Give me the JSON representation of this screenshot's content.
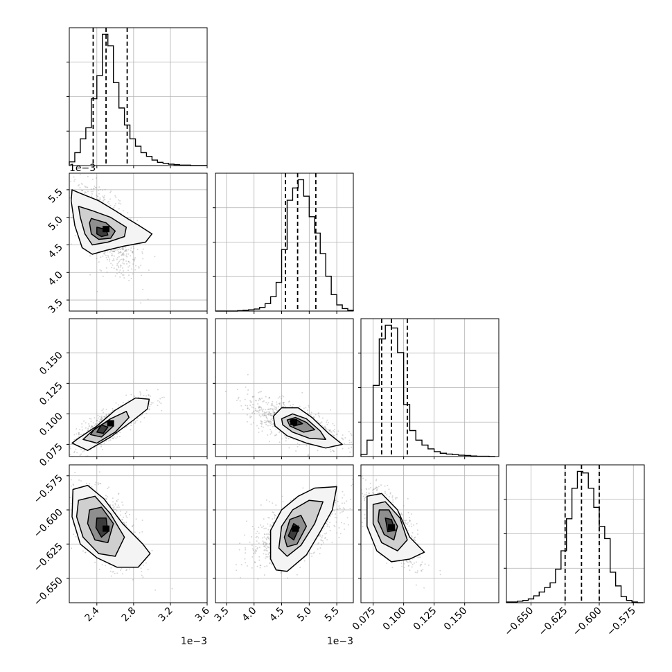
{
  "chart_data": {
    "type": "corner",
    "grid": true,
    "quantile_lines": "dashed",
    "parameters": [
      {
        "id": "p0",
        "range": [
          2.1,
          3.6
        ],
        "ticks": [
          2.4,
          2.8,
          3.2,
          3.6
        ],
        "tick_labels": [
          "2.4",
          "2.8",
          "3.2",
          "3.6"
        ],
        "offset_label": "1e−3"
      },
      {
        "id": "p1",
        "range": [
          3.3,
          5.8
        ],
        "ticks": [
          3.5,
          4.0,
          4.5,
          5.0,
          5.5
        ],
        "tick_labels": [
          "3.5",
          "4.0",
          "4.5",
          "5.0",
          "5.5"
        ],
        "offset_label": "1e−3"
      },
      {
        "id": "p2",
        "range": [
          0.065,
          0.178
        ],
        "ticks": [
          0.075,
          0.1,
          0.125,
          0.15
        ],
        "tick_labels": [
          "0.075",
          "0.100",
          "0.125",
          "0.150"
        ],
        "offset_label": ""
      },
      {
        "id": "p3",
        "range": [
          -0.668,
          -0.567
        ],
        "ticks": [
          -0.65,
          -0.625,
          -0.6,
          -0.575
        ],
        "tick_labels": [
          "−0.650",
          "−0.625",
          "−0.600",
          "−0.575"
        ],
        "offset_label": ""
      }
    ],
    "row_offset_label": "1e−3",
    "histograms": [
      {
        "param": 0,
        "quantiles": [
          2.36,
          2.5,
          2.73
        ],
        "bin_edges": [
          2.1,
          2.16,
          2.22,
          2.28,
          2.34,
          2.4,
          2.46,
          2.52,
          2.58,
          2.64,
          2.7,
          2.76,
          2.82,
          2.88,
          2.94,
          3.0,
          3.06,
          3.12,
          3.18,
          3.24,
          3.3,
          3.36,
          3.42,
          3.48,
          3.54,
          3.6
        ],
        "counts": [
          8,
          28,
          58,
          82,
          145,
          195,
          285,
          260,
          180,
          125,
          88,
          58,
          42,
          28,
          20,
          12,
          7,
          5,
          3,
          2,
          1,
          1,
          0,
          0,
          0
        ]
      },
      {
        "param": 1,
        "quantiles": [
          4.57,
          4.79,
          5.12
        ],
        "bin_edges": [
          3.3,
          3.4,
          3.5,
          3.6,
          3.7,
          3.8,
          3.9,
          4.0,
          4.1,
          4.2,
          4.3,
          4.4,
          4.5,
          4.6,
          4.7,
          4.8,
          4.9,
          5.0,
          5.1,
          5.2,
          5.3,
          5.4,
          5.5,
          5.6,
          5.7,
          5.8
        ],
        "counts": [
          0,
          0,
          0,
          0,
          1,
          2,
          3,
          5,
          9,
          18,
          35,
          70,
          150,
          270,
          300,
          320,
          280,
          230,
          190,
          140,
          85,
          40,
          15,
          6,
          2
        ]
      },
      {
        "param": 2,
        "quantiles": [
          0.082,
          0.09,
          0.103
        ],
        "bin_edges": [
          0.065,
          0.07,
          0.075,
          0.08,
          0.085,
          0.09,
          0.095,
          0.1,
          0.105,
          0.11,
          0.115,
          0.12,
          0.125,
          0.13,
          0.135,
          0.14,
          0.145,
          0.15,
          0.155,
          0.16,
          0.165,
          0.17,
          0.175
        ],
        "counts": [
          8,
          60,
          260,
          430,
          480,
          470,
          380,
          190,
          95,
          60,
          42,
          28,
          18,
          12,
          9,
          7,
          5,
          4,
          2,
          1,
          1,
          0
        ]
      },
      {
        "param": 3,
        "quantiles": [
          -0.625,
          -0.613,
          -0.6
        ],
        "bin_edges": [
          -0.668,
          -0.664,
          -0.66,
          -0.656,
          -0.652,
          -0.648,
          -0.644,
          -0.64,
          -0.636,
          -0.632,
          -0.628,
          -0.624,
          -0.62,
          -0.616,
          -0.612,
          -0.608,
          -0.604,
          -0.6,
          -0.596,
          -0.592,
          -0.588,
          -0.584,
          -0.58,
          -0.576,
          -0.572,
          -0.568
        ],
        "counts": [
          1,
          1,
          2,
          3,
          5,
          9,
          14,
          20,
          26,
          44,
          68,
          110,
          150,
          172,
          170,
          150,
          125,
          100,
          84,
          40,
          22,
          8,
          3,
          1,
          0
        ]
      }
    ],
    "joint": [
      {
        "x": 0,
        "y": 1,
        "mean": [
          2.5,
          4.78
        ],
        "sd": [
          0.12,
          0.28
        ],
        "corr": -0.6,
        "contours": [
          [
            [
              2.13,
              5.5
            ],
            [
              2.2,
              5.45
            ],
            [
              2.42,
              5.3
            ],
            [
              2.6,
              5.12
            ],
            [
              2.75,
              4.96
            ],
            [
              2.86,
              4.85
            ],
            [
              3.0,
              4.7
            ],
            [
              2.93,
              4.55
            ],
            [
              2.7,
              4.48
            ],
            [
              2.5,
              4.4
            ],
            [
              2.35,
              4.33
            ],
            [
              2.24,
              4.45
            ],
            [
              2.16,
              4.85
            ],
            [
              2.12,
              5.3
            ]
          ],
          [
            [
              2.2,
              5.2
            ],
            [
              2.35,
              5.12
            ],
            [
              2.55,
              5.0
            ],
            [
              2.72,
              4.82
            ],
            [
              2.7,
              4.65
            ],
            [
              2.52,
              4.55
            ],
            [
              2.35,
              4.5
            ],
            [
              2.27,
              4.7
            ],
            [
              2.22,
              5.0
            ]
          ],
          [
            [
              2.34,
              4.98
            ],
            [
              2.5,
              4.9
            ],
            [
              2.6,
              4.75
            ],
            [
              2.55,
              4.62
            ],
            [
              2.42,
              4.6
            ],
            [
              2.34,
              4.7
            ],
            [
              2.32,
              4.9
            ]
          ],
          [
            [
              2.4,
              4.82
            ],
            [
              2.5,
              4.78
            ],
            [
              2.52,
              4.68
            ],
            [
              2.45,
              4.65
            ],
            [
              2.4,
              4.7
            ]
          ]
        ]
      },
      {
        "x": 0,
        "y": 2,
        "mean": [
          2.55,
          0.092
        ],
        "sd": [
          0.14,
          0.007
        ],
        "corr": 0.82,
        "contours": [
          [
            [
              2.13,
              0.076
            ],
            [
              2.3,
              0.07
            ],
            [
              2.55,
              0.081
            ],
            [
              2.8,
              0.095
            ],
            [
              2.95,
              0.104
            ],
            [
              2.97,
              0.112
            ],
            [
              2.82,
              0.113
            ],
            [
              2.6,
              0.103
            ],
            [
              2.4,
              0.09
            ],
            [
              2.2,
              0.08
            ]
          ],
          [
            [
              2.25,
              0.079
            ],
            [
              2.4,
              0.076
            ],
            [
              2.6,
              0.085
            ],
            [
              2.75,
              0.097
            ],
            [
              2.72,
              0.102
            ],
            [
              2.55,
              0.096
            ],
            [
              2.35,
              0.086
            ]
          ],
          [
            [
              2.33,
              0.083
            ],
            [
              2.45,
              0.081
            ],
            [
              2.58,
              0.09
            ],
            [
              2.52,
              0.094
            ],
            [
              2.38,
              0.088
            ]
          ],
          [
            [
              2.4,
              0.085
            ],
            [
              2.47,
              0.084
            ],
            [
              2.52,
              0.089
            ],
            [
              2.45,
              0.091
            ]
          ]
        ]
      },
      {
        "x": 1,
        "y": 2,
        "mean": [
          4.72,
          0.093
        ],
        "sd": [
          0.3,
          0.007
        ],
        "corr": -0.65,
        "contours": [
          [
            [
              4.35,
              0.098
            ],
            [
              4.5,
              0.105
            ],
            [
              4.8,
              0.105
            ],
            [
              5.05,
              0.097
            ],
            [
              5.35,
              0.084
            ],
            [
              5.6,
              0.075
            ],
            [
              5.3,
              0.072
            ],
            [
              4.95,
              0.076
            ],
            [
              4.6,
              0.082
            ],
            [
              4.38,
              0.09
            ]
          ],
          [
            [
              4.5,
              0.096
            ],
            [
              4.7,
              0.1
            ],
            [
              4.95,
              0.096
            ],
            [
              5.2,
              0.086
            ],
            [
              5.3,
              0.079
            ],
            [
              5.0,
              0.08
            ],
            [
              4.7,
              0.085
            ],
            [
              4.52,
              0.091
            ]
          ],
          [
            [
              4.6,
              0.095
            ],
            [
              4.75,
              0.097
            ],
            [
              4.95,
              0.093
            ],
            [
              5.1,
              0.087
            ],
            [
              4.9,
              0.085
            ],
            [
              4.65,
              0.09
            ]
          ],
          [
            [
              4.65,
              0.094
            ],
            [
              4.78,
              0.095
            ],
            [
              4.88,
              0.092
            ],
            [
              4.72,
              0.09
            ]
          ]
        ]
      },
      {
        "x": 0,
        "y": 3,
        "mean": [
          2.5,
          -0.614
        ],
        "sd": [
          0.12,
          0.01
        ],
        "corr": -0.55,
        "contours": [
          [
            [
              2.14,
              -0.585
            ],
            [
              2.3,
              -0.582
            ],
            [
              2.48,
              -0.592
            ],
            [
              2.68,
              -0.61
            ],
            [
              2.9,
              -0.625
            ],
            [
              2.98,
              -0.632
            ],
            [
              2.85,
              -0.642
            ],
            [
              2.62,
              -0.642
            ],
            [
              2.4,
              -0.635
            ],
            [
              2.22,
              -0.625
            ],
            [
              2.13,
              -0.605
            ]
          ],
          [
            [
              2.2,
              -0.593
            ],
            [
              2.38,
              -0.59
            ],
            [
              2.55,
              -0.603
            ],
            [
              2.7,
              -0.62
            ],
            [
              2.6,
              -0.634
            ],
            [
              2.42,
              -0.632
            ],
            [
              2.25,
              -0.62
            ],
            [
              2.18,
              -0.605
            ]
          ],
          [
            [
              2.32,
              -0.6
            ],
            [
              2.45,
              -0.598
            ],
            [
              2.58,
              -0.61
            ],
            [
              2.52,
              -0.624
            ],
            [
              2.38,
              -0.622
            ],
            [
              2.3,
              -0.61
            ]
          ],
          [
            [
              2.4,
              -0.606
            ],
            [
              2.5,
              -0.606
            ],
            [
              2.52,
              -0.616
            ],
            [
              2.45,
              -0.62
            ],
            [
              2.39,
              -0.613
            ]
          ]
        ]
      },
      {
        "x": 1,
        "y": 3,
        "mean": [
          4.75,
          -0.614
        ],
        "sd": [
          0.3,
          0.009
        ],
        "corr": 0.6,
        "contours": [
          [
            [
              4.3,
              -0.636
            ],
            [
              4.3,
              -0.615
            ],
            [
              4.5,
              -0.6
            ],
            [
              4.8,
              -0.59
            ],
            [
              5.1,
              -0.584
            ],
            [
              5.5,
              -0.583
            ],
            [
              5.42,
              -0.6
            ],
            [
              5.2,
              -0.616
            ],
            [
              4.95,
              -0.633
            ],
            [
              4.6,
              -0.645
            ],
            [
              4.4,
              -0.644
            ]
          ],
          [
            [
              4.45,
              -0.628
            ],
            [
              4.5,
              -0.612
            ],
            [
              4.7,
              -0.6
            ],
            [
              5.0,
              -0.593
            ],
            [
              5.25,
              -0.594
            ],
            [
              5.1,
              -0.61
            ],
            [
              4.85,
              -0.626
            ],
            [
              4.6,
              -0.634
            ]
          ],
          [
            [
              4.55,
              -0.62
            ],
            [
              4.65,
              -0.607
            ],
            [
              4.85,
              -0.604
            ],
            [
              4.95,
              -0.612
            ],
            [
              4.78,
              -0.625
            ],
            [
              4.6,
              -0.627
            ]
          ],
          [
            [
              4.62,
              -0.619
            ],
            [
              4.72,
              -0.61
            ],
            [
              4.82,
              -0.613
            ],
            [
              4.72,
              -0.622
            ]
          ]
        ]
      },
      {
        "x": 2,
        "y": 3,
        "mean": [
          0.09,
          -0.613
        ],
        "sd": [
          0.008,
          0.01
        ],
        "corr": -0.7,
        "contours": [
          [
            [
              0.07,
              -0.59
            ],
            [
              0.082,
              -0.588
            ],
            [
              0.095,
              -0.6
            ],
            [
              0.105,
              -0.62
            ],
            [
              0.117,
              -0.631
            ],
            [
              0.105,
              -0.636
            ],
            [
              0.09,
              -0.638
            ],
            [
              0.078,
              -0.63
            ],
            [
              0.07,
              -0.612
            ]
          ],
          [
            [
              0.075,
              -0.596
            ],
            [
              0.085,
              -0.594
            ],
            [
              0.097,
              -0.606
            ],
            [
              0.103,
              -0.622
            ],
            [
              0.095,
              -0.63
            ],
            [
              0.082,
              -0.624
            ],
            [
              0.075,
              -0.61
            ]
          ],
          [
            [
              0.08,
              -0.6
            ],
            [
              0.088,
              -0.6
            ],
            [
              0.095,
              -0.612
            ],
            [
              0.092,
              -0.622
            ],
            [
              0.084,
              -0.618
            ],
            [
              0.079,
              -0.608
            ]
          ],
          [
            [
              0.085,
              -0.606
            ],
            [
              0.09,
              -0.607
            ],
            [
              0.093,
              -0.615
            ],
            [
              0.087,
              -0.616
            ]
          ]
        ]
      }
    ]
  }
}
